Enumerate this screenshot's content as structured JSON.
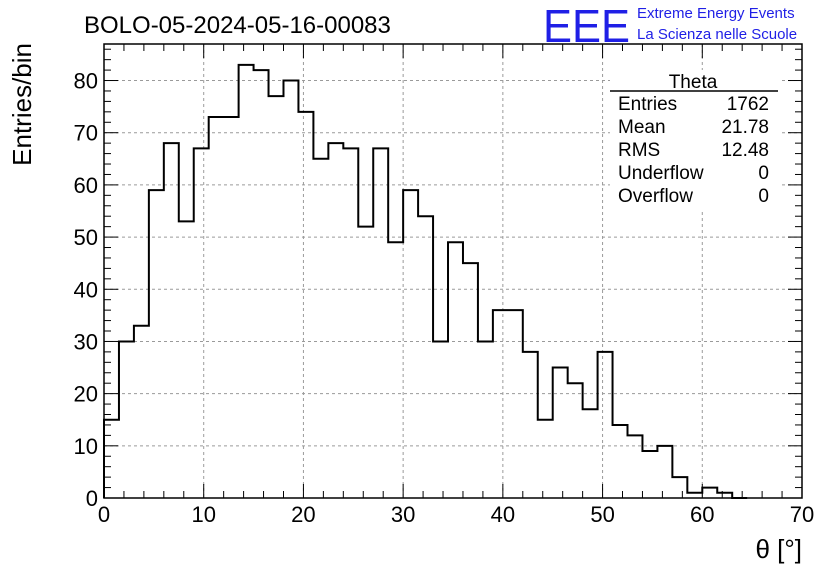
{
  "header": {
    "title": "BOLO-05-2024-05-16-00083",
    "logo_mark": "EEE",
    "logo_line1": "Extreme Energy Events",
    "logo_line2": "La Scienza nelle Scuole"
  },
  "stats": {
    "name": "Theta",
    "rows": [
      {
        "label": "Entries",
        "value": "1762"
      },
      {
        "label": "Mean",
        "value": "21.78"
      },
      {
        "label": "RMS",
        "value": "12.48"
      },
      {
        "label": "Underflow",
        "value": "0"
      },
      {
        "label": "Overflow",
        "value": "0"
      }
    ]
  },
  "colors": {
    "line": "#000000",
    "grid": "#9a9a9a",
    "logo": "#1f1fe6"
  },
  "chart_data": {
    "type": "bar",
    "style": "step-histogram",
    "xlabel": "θ [°]",
    "ylabel": "Entries/bin",
    "xlim": [
      0,
      70
    ],
    "ylim": [
      0,
      87
    ],
    "bin_width": 1.5,
    "bin_start": 0,
    "values": [
      15,
      30,
      33,
      59,
      68,
      53,
      67,
      73,
      73,
      83,
      82,
      77,
      80,
      74,
      65,
      68,
      67,
      52,
      67,
      49,
      59,
      54,
      30,
      49,
      45,
      30,
      36,
      36,
      28,
      15,
      25,
      22,
      17,
      28,
      14,
      12,
      9,
      10,
      4,
      1,
      2,
      1,
      0
    ],
    "xticks": [
      "0",
      "10",
      "20",
      "30",
      "40",
      "50",
      "60",
      "70"
    ],
    "yticks": [
      "0",
      "10",
      "20",
      "30",
      "40",
      "50",
      "60",
      "70",
      "80"
    ],
    "grid": true,
    "legend_position": "top-right"
  }
}
